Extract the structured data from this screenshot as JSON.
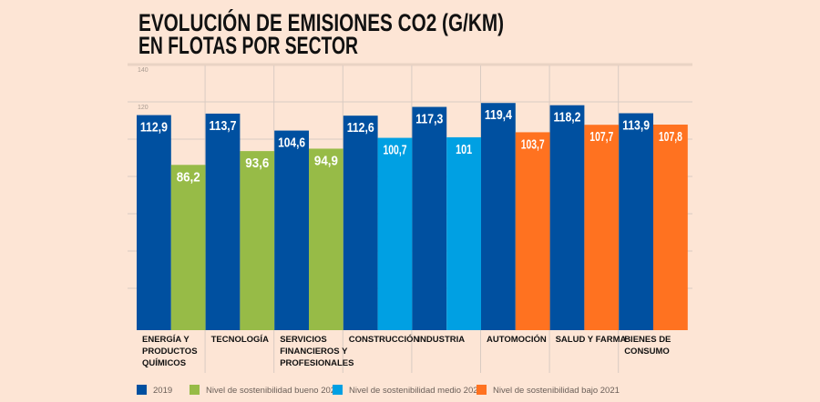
{
  "chart_data": {
    "type": "bar",
    "title": [
      "EVOLUCIÓN DE EMISIONES CO2 (G/KM)",
      "EN FLOTAS POR SECTOR"
    ],
    "yticks": [
      120,
      140
    ],
    "grid": true,
    "legend_placement": "bottom",
    "categories": [
      [
        "ENERGÍA Y",
        "PRODUCTOS",
        "QUÍMICOS"
      ],
      [
        "TECNOLOGÍA"
      ],
      [
        "SERVICIOS",
        "FINANCIEROS Y",
        "PROFESIONALES"
      ],
      [
        "CONSTRUCCIÓN"
      ],
      [
        "INDUSTRIA"
      ],
      [
        "AUTOMOCIÓN"
      ],
      [
        "SALUD Y FARMA"
      ],
      [
        "BIENES DE",
        "CONSUMO"
      ]
    ],
    "values_2019": [
      "112,9",
      "113,7",
      "104,6",
      "112,6",
      "117,3",
      "119,4",
      "118,2",
      "113,9"
    ],
    "values_2021": [
      "86,2",
      "93,6",
      "94,9",
      "100,7",
      "101",
      "103,7",
      "107,7",
      "107,8"
    ],
    "level_2021": [
      "good",
      "good",
      "good",
      "medium",
      "medium",
      "low",
      "low",
      "low"
    ],
    "legend": [
      {
        "key": "2019",
        "label": "2019",
        "color": "#0050a0"
      },
      {
        "key": "good",
        "label": "Nivel de sostenibilidad bueno 2021",
        "color": "#97bb47"
      },
      {
        "key": "medium",
        "label": "Nivel de sostenibilidad medio 2021",
        "color": "#00a0e3"
      },
      {
        "key": "low",
        "label": "Nivel de sostenibilidad bajo 2021",
        "color": "#ff7220"
      }
    ]
  }
}
